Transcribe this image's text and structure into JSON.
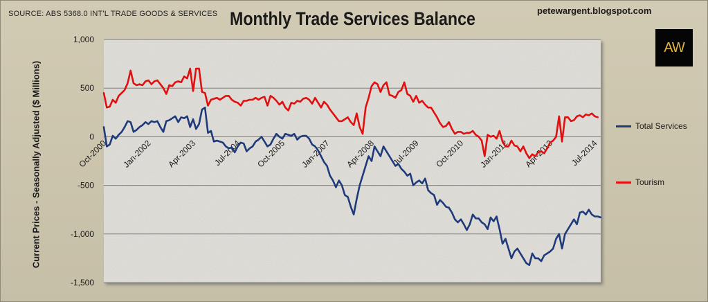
{
  "header": {
    "source": "SOURCE: ABS 5368.0 INT'L TRADE GOODS & SERVICES",
    "title": "Monthly Trade Services Balance",
    "blog": "petewargent.blogspot.com",
    "logo_text": "AW"
  },
  "chart_data": {
    "type": "line",
    "title": "Monthly Trade Services Balance",
    "ylabel": "Current Prices - Seasonally Adjusted ($ Millions)",
    "xlabel": "",
    "ylim": [
      -1500,
      1000
    ],
    "yticks": [
      1000,
      500,
      0,
      -500,
      -1000,
      -1500
    ],
    "ytick_labels": [
      "1,000",
      "500",
      "0",
      "-500",
      "-1,000",
      "-1,500"
    ],
    "x_start": "Oct-2000",
    "x_end": "Dec-2015",
    "xtick_labels": [
      "Oct-2000",
      "Jan-2002",
      "Apr-2003",
      "Jul-2004",
      "Oct-2005",
      "Jan-2007",
      "Apr-2008",
      "Jul-2009",
      "Oct-2010",
      "Jan-2012",
      "Apr-2013",
      "Jul-2014"
    ],
    "grid": true,
    "legend_position": "right",
    "colors": {
      "Total Services": "#1f3a7a",
      "Tourism": "#e01010"
    },
    "series": [
      {
        "name": "Total Services",
        "values": [
          100,
          -100,
          -80,
          10,
          -20,
          20,
          50,
          100,
          160,
          150,
          50,
          70,
          100,
          120,
          150,
          130,
          160,
          150,
          160,
          100,
          50,
          160,
          170,
          190,
          210,
          150,
          200,
          190,
          210,
          100,
          180,
          80,
          130,
          280,
          300,
          40,
          60,
          -50,
          -40,
          -50,
          -60,
          -100,
          -120,
          -110,
          -160,
          -100,
          -60,
          -70,
          -150,
          -120,
          -100,
          -50,
          -30,
          0,
          -50,
          -100,
          -80,
          -20,
          30,
          0,
          -20,
          30,
          20,
          10,
          30,
          -30,
          0,
          10,
          10,
          -20,
          -80,
          -100,
          -140,
          -200,
          -260,
          -300,
          -400,
          -450,
          -520,
          -450,
          -500,
          -600,
          -620,
          -720,
          -800,
          -640,
          -500,
          -400,
          -300,
          -200,
          -250,
          -100,
          -150,
          -200,
          -100,
          -150,
          -200,
          -250,
          -300,
          -280,
          -330,
          -360,
          -400,
          -380,
          -500,
          -470,
          -450,
          -480,
          -430,
          -550,
          -580,
          -600,
          -700,
          -650,
          -680,
          -720,
          -730,
          -780,
          -850,
          -880,
          -850,
          -900,
          -960,
          -900,
          -800,
          -840,
          -840,
          -880,
          -900,
          -950,
          -830,
          -870,
          -820,
          -950,
          -1100,
          -1050,
          -1150,
          -1250,
          -1180,
          -1150,
          -1200,
          -1250,
          -1300,
          -1320,
          -1200,
          -1250,
          -1250,
          -1280,
          -1220,
          -1200,
          -1180,
          -1150,
          -1050,
          -1000,
          -1150,
          -1000,
          -950,
          -900,
          -850,
          -900,
          -780,
          -770,
          -800,
          -750,
          -800,
          -820,
          -820,
          -830
        ]
      },
      {
        "name": "Tourism",
        "values": [
          450,
          300,
          310,
          380,
          350,
          420,
          450,
          480,
          550,
          680,
          550,
          530,
          540,
          530,
          570,
          580,
          540,
          570,
          580,
          540,
          500,
          440,
          530,
          520,
          560,
          570,
          560,
          620,
          600,
          700,
          470,
          700,
          700,
          460,
          450,
          320,
          380,
          390,
          400,
          380,
          400,
          420,
          420,
          380,
          360,
          350,
          320,
          370,
          370,
          380,
          380,
          400,
          380,
          400,
          410,
          320,
          420,
          400,
          370,
          330,
          360,
          300,
          270,
          350,
          340,
          370,
          360,
          390,
          400,
          380,
          340,
          400,
          350,
          300,
          360,
          330,
          280,
          240,
          200,
          160,
          160,
          180,
          200,
          150,
          120,
          240,
          100,
          30,
          300,
          400,
          520,
          560,
          540,
          460,
          530,
          560,
          430,
          420,
          400,
          460,
          480,
          560,
          440,
          420,
          360,
          420,
          350,
          370,
          330,
          300,
          300,
          250,
          200,
          140,
          100,
          110,
          150,
          80,
          30,
          50,
          50,
          30,
          40,
          40,
          60,
          20,
          0,
          -40,
          -200,
          20,
          0,
          10,
          -20,
          60,
          -50,
          -100,
          -100,
          -40,
          -90,
          -100,
          -150,
          -100,
          -170,
          -220,
          -180,
          -200,
          -160,
          -150,
          -170,
          -120,
          -60,
          -40,
          0,
          210,
          -50,
          200,
          200,
          160,
          170,
          210,
          220,
          200,
          230,
          220,
          240,
          210,
          200
        ]
      }
    ]
  }
}
